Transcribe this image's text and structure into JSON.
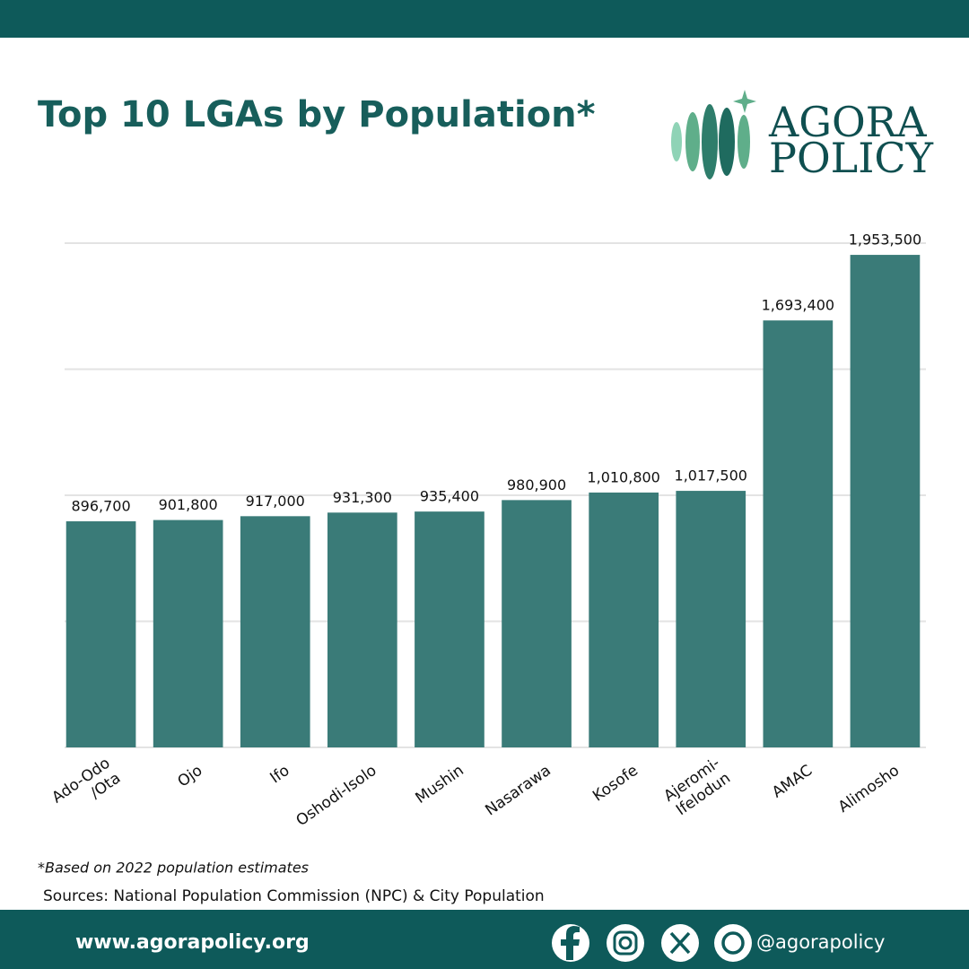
{
  "chart_data": {
    "type": "bar",
    "title": "Top 10 LGAs by Population*",
    "categories": [
      "Ado-Odo\n/Ota",
      "Ojo",
      "Ifo",
      "Oshodi-Isolo",
      "Mushin",
      "Nasarawa",
      "Kosofe",
      "Ajeromi-\nIfelodun",
      "AMAC",
      "Alimosho"
    ],
    "values": [
      896700,
      901800,
      917000,
      931300,
      935400,
      980900,
      1010800,
      1017500,
      1693400,
      1953500
    ],
    "value_labels": [
      "896,700",
      "901,800",
      "917,000",
      "931,300",
      "935,400",
      "980,900",
      "1,010,800",
      "1,017,500",
      "1,693,400",
      "1,953,500"
    ],
    "color": "#3a7b78",
    "ylim": [
      0,
      2000000
    ],
    "yticks": [
      0,
      500000,
      1000000,
      1500000,
      2000000
    ],
    "grid": true,
    "footnote": "*Based on 2022 population estimates",
    "source": "Sources: National Population Commission (NPC) & City Population"
  },
  "logo": {
    "line1": "AGORA",
    "line2": "POLICY"
  },
  "footer": {
    "website": "www.agorapolicy.org",
    "handle": "@agorapolicy"
  }
}
